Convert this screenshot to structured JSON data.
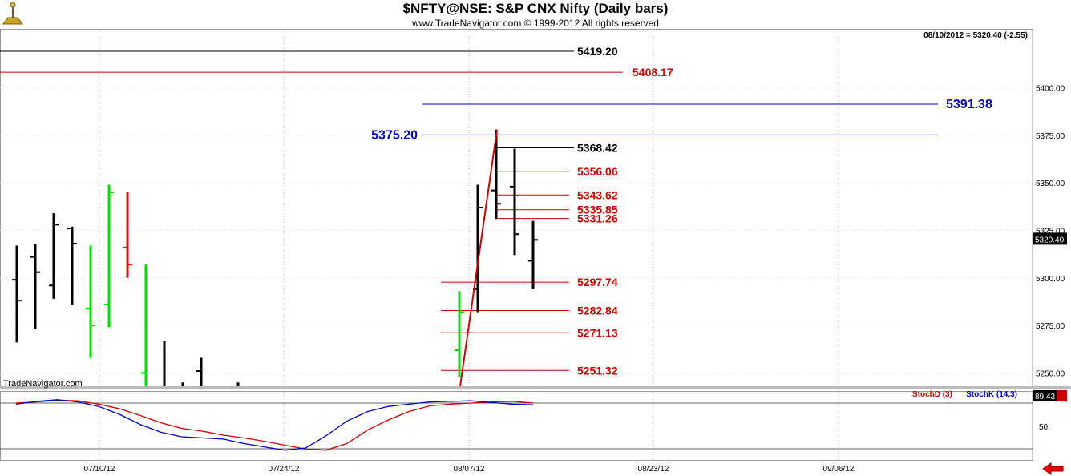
{
  "header": {
    "title": "$NFTY@NSE:  S&P CNX Nifty  (Daily bars)",
    "subtitle": "www.TradeNavigator.com © 1999-2012 All rights reserved"
  },
  "info": {
    "last_bar": "08/10/2012 = 5320.40 (-2.55)"
  },
  "watermark": "TradeNavigator.com",
  "logo_icon": "tradenavigator-logo-icon",
  "back_icon": "red-left-arrow-icon",
  "colors": {
    "up": "#00dd00",
    "down": "#ff0000",
    "neutral": "#000000",
    "fib": "#cc0000",
    "blue": "#0000cc",
    "stochD": "#cc0000",
    "stochK": "#0000cc"
  },
  "chart_data": [
    {
      "type": "ohlc",
      "title": "$NFTY@NSE:  S&P CNX Nifty  (Daily bars)",
      "x_ticks": [
        "07/10/12",
        "07/24/12",
        "08/07/12",
        "08/23/12",
        "09/06/12"
      ],
      "y_ticks": [
        "5250.00",
        "5275.00",
        "5300.00",
        "5325.00",
        "5350.00",
        "5375.00",
        "5400.00"
      ],
      "ylim": [
        5243,
        5431
      ],
      "last_price_label": "5320.40",
      "bars": [
        {
          "o": 5299,
          "h": 5317,
          "l": 5266,
          "c": 5288,
          "col": "neutral"
        },
        {
          "o": 5311,
          "h": 5318,
          "l": 5273,
          "c": 5303,
          "col": "neutral"
        },
        {
          "o": 5296,
          "h": 5334,
          "l": 5289,
          "c": 5328,
          "col": "neutral"
        },
        {
          "o": 5326,
          "h": 5327,
          "l": 5286,
          "c": 5318,
          "col": "neutral"
        },
        {
          "o": 5284,
          "h": 5317,
          "l": 5258,
          "c": 5275,
          "col": "up"
        },
        {
          "o": 5286,
          "h": 5349,
          "l": 5274,
          "c": 5345,
          "col": "up"
        },
        {
          "o": 5316,
          "h": 5345,
          "l": 5300,
          "c": 5307,
          "col": "down"
        },
        {
          "o": 5250,
          "h": 5307,
          "l": 5200,
          "c": 5220,
          "col": "up"
        },
        {
          "o": 5242,
          "h": 5267,
          "l": 5222,
          "c": 5230,
          "col": "neutral"
        },
        {
          "o": 5238,
          "h": 5245,
          "l": 5205,
          "c": 5215,
          "col": "neutral"
        },
        {
          "o": 5251,
          "h": 5258,
          "l": 5215,
          "c": 5225,
          "col": "neutral"
        },
        {
          "o": 5238,
          "h": 5245,
          "l": 5220,
          "c": 5242,
          "col": "neutral"
        },
        {
          "o": 5262,
          "h": 5293,
          "l": 5248,
          "c": 5282,
          "col": "up"
        },
        {
          "o": 5294,
          "h": 5349,
          "l": 5282,
          "c": 5337,
          "col": "neutral"
        },
        {
          "o": 5346,
          "h": 5378,
          "l": 5331,
          "c": 5339,
          "col": "neutral"
        },
        {
          "o": 5348,
          "h": 5368,
          "l": 5312,
          "c": 5323,
          "col": "neutral"
        },
        {
          "o": 5309,
          "h": 5330,
          "l": 5294,
          "c": 5320,
          "col": "neutral"
        }
      ],
      "levels": [
        {
          "value": 5419.2,
          "label": "5419.20",
          "color": "#000000"
        },
        {
          "value": 5408.17,
          "label": "5408.17",
          "color": "#cc0000"
        },
        {
          "value": 5391.38,
          "label": "5391.38",
          "color": "#0000cc"
        },
        {
          "value": 5375.2,
          "label": "5375.20",
          "color": "#0000cc"
        },
        {
          "value": 5368.42,
          "label": "5368.42",
          "color": "#000000"
        },
        {
          "value": 5356.06,
          "label": "5356.06",
          "color": "#cc0000"
        },
        {
          "value": 5343.62,
          "label": "5343.62",
          "color": "#cc0000"
        },
        {
          "value": 5335.85,
          "label": "5335.85",
          "color": "#cc0000"
        },
        {
          "value": 5331.26,
          "label": "5331.26",
          "color": "#cc0000"
        },
        {
          "value": 5297.74,
          "label": "5297.74",
          "color": "#cc0000"
        },
        {
          "value": 5282.84,
          "label": "5282.84",
          "color": "#cc0000"
        },
        {
          "value": 5271.13,
          "label": "5271.13",
          "color": "#cc0000"
        },
        {
          "value": 5251.32,
          "label": "5251.32",
          "color": "#cc0000"
        }
      ],
      "swing_line": {
        "from": 5243,
        "to": 5378
      }
    },
    {
      "type": "line",
      "y_ticks": [
        "50"
      ],
      "last_value_label": "89.43",
      "series": [
        {
          "name": "StochD (3)",
          "color": "#cc0000",
          "values": [
            90,
            92,
            95,
            94,
            88,
            80,
            68,
            55,
            45,
            40,
            33,
            28,
            22,
            15,
            8,
            6,
            18,
            42,
            60,
            75,
            85,
            88,
            90,
            92,
            93,
            90
          ]
        },
        {
          "name": "StochK (14,3)",
          "color": "#0000cc",
          "values": [
            88,
            93,
            96,
            92,
            84,
            70,
            52,
            38,
            30,
            28,
            26,
            18,
            12,
            6,
            10,
            32,
            58,
            75,
            84,
            88,
            92,
            93,
            94,
            91,
            88,
            87
          ]
        }
      ]
    }
  ]
}
